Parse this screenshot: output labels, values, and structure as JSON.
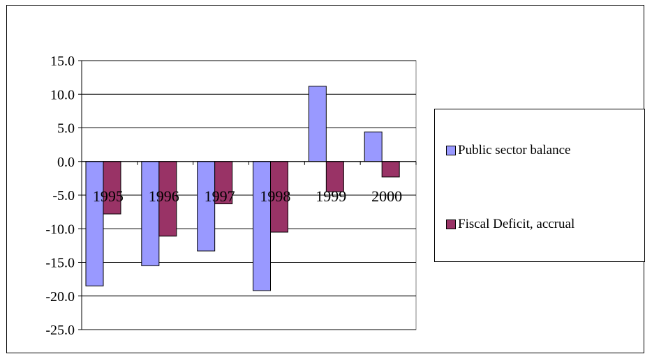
{
  "chart_data": {
    "type": "bar",
    "categories": [
      "1995",
      "1996",
      "1997",
      "1998",
      "1999",
      "2000"
    ],
    "series": [
      {
        "name": "Public sector balance",
        "color": "#9999FF",
        "values": [
          -18.5,
          -15.5,
          -13.3,
          -19.2,
          11.2,
          4.4
        ]
      },
      {
        "name": "Fiscal Deficit, accrual",
        "color": "#993366",
        "values": [
          -7.8,
          -11.1,
          -6.3,
          -10.5,
          -4.5,
          -2.3
        ]
      }
    ],
    "yticks": [
      "15.0",
      "10.0",
      "5.0",
      "0.0",
      "-5.0",
      "-10.0",
      "-15.0",
      "-20.0",
      "-25.0"
    ],
    "ylim": [
      -25,
      15
    ],
    "grid": true,
    "legend_position": "right",
    "title": "",
    "xlabel": "",
    "ylabel": ""
  }
}
